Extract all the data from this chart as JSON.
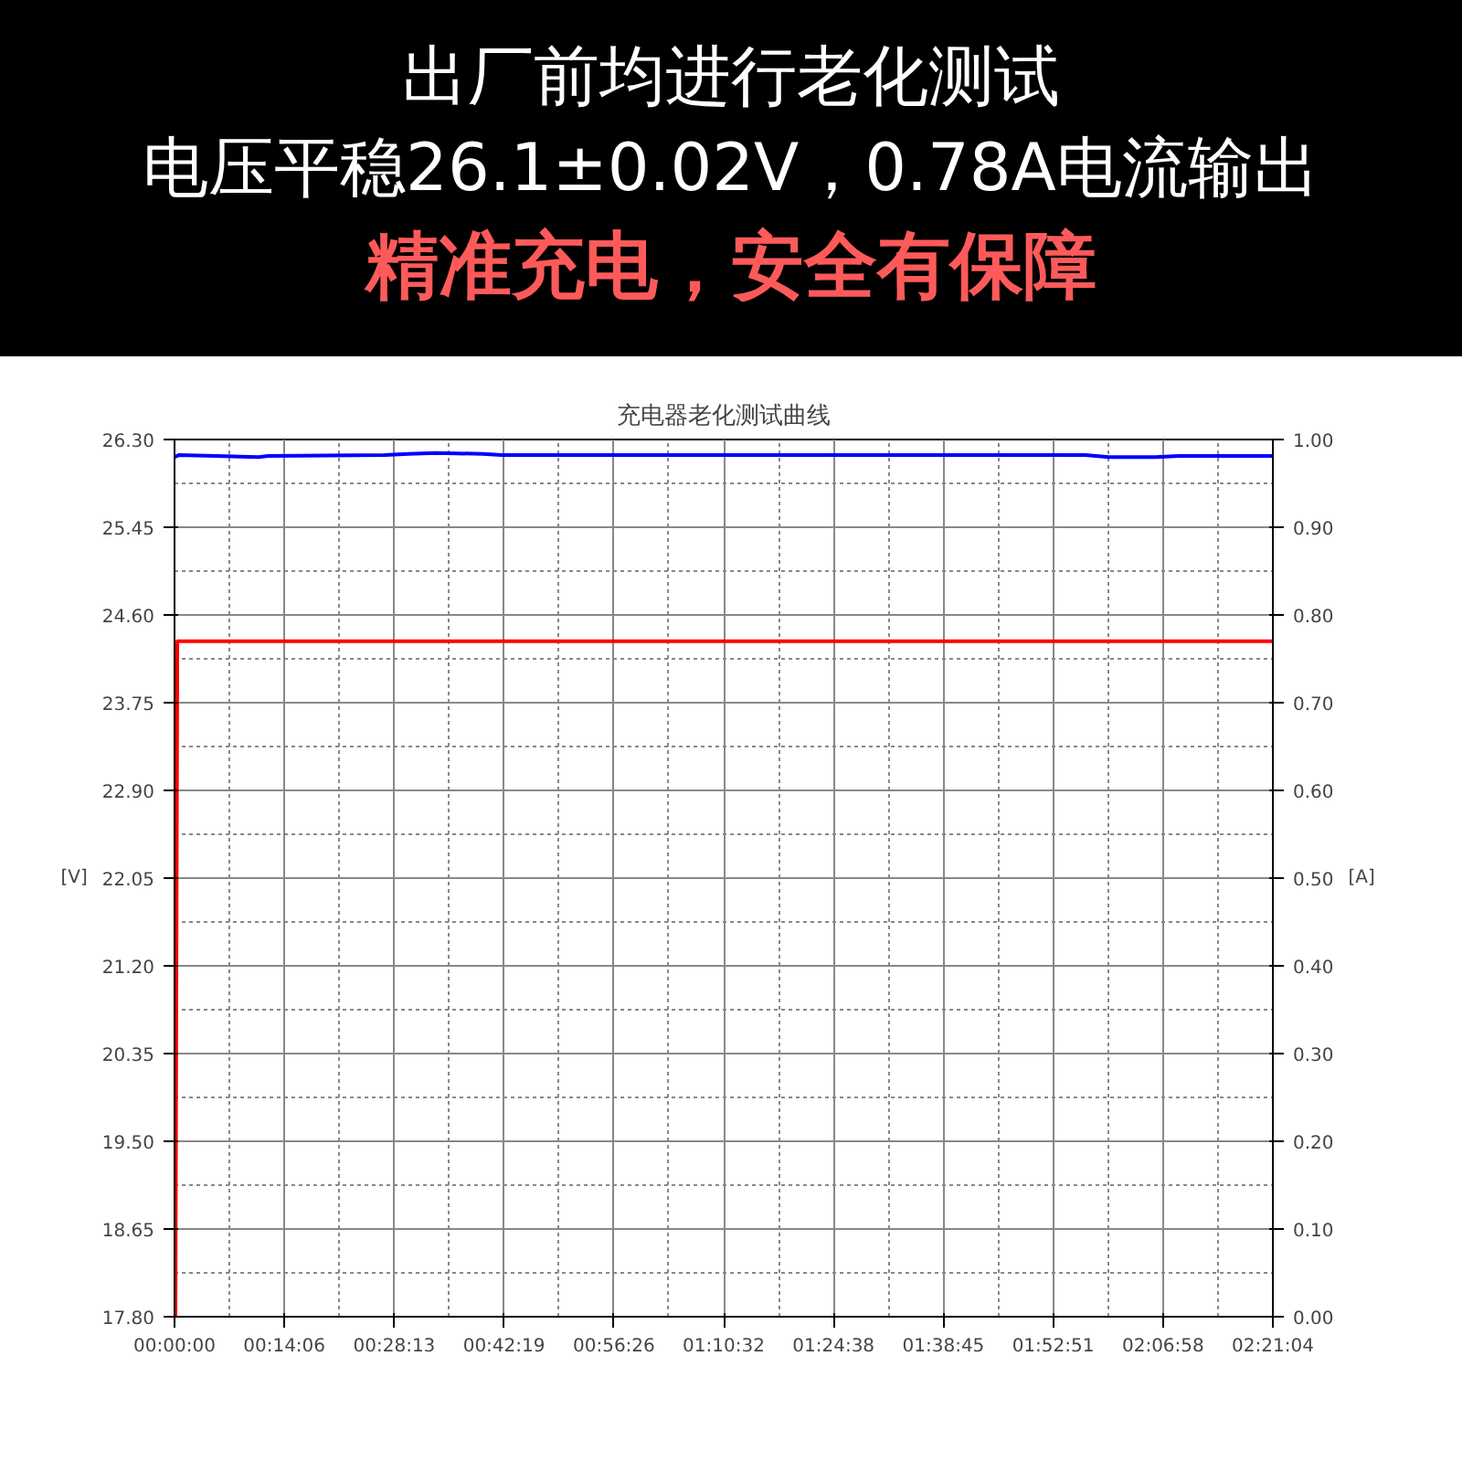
{
  "chart_data": {
    "type": "line",
    "title": "充电器老化测试曲线",
    "annotations": [
      "出厂前均进行老化测试",
      "电压平稳26.1±0.02V，0.78A电流输出",
      "精准充电，安全有保障"
    ],
    "ylabel": "[V]",
    "y2label": "[A]",
    "xlim": [
      0,
      2.3511
    ],
    "ylim": [
      17.8,
      26.3
    ],
    "y2lim": [
      0,
      1.0
    ],
    "xticks": [
      {
        "value": 0,
        "label": "00:00:00"
      },
      {
        "value": 0.235,
        "label": "00:14:06"
      },
      {
        "value": 0.4703,
        "label": "00:28:13"
      },
      {
        "value": 0.7053,
        "label": "00:42:19"
      },
      {
        "value": 0.9406,
        "label": "00:56:26"
      },
      {
        "value": 1.1756,
        "label": "01:10:32"
      },
      {
        "value": 1.4106,
        "label": "01:24:38"
      },
      {
        "value": 1.6458,
        "label": "01:38:45"
      },
      {
        "value": 1.8808,
        "label": "01:52:51"
      },
      {
        "value": 2.1161,
        "label": "02:06:58"
      },
      {
        "value": 2.3511,
        "label": "02:21:04"
      }
    ],
    "yticks": [
      {
        "value": 17.8,
        "label": "17.80"
      },
      {
        "value": 18.65,
        "label": "18.65"
      },
      {
        "value": 19.5,
        "label": "19.50"
      },
      {
        "value": 20.35,
        "label": "20.35"
      },
      {
        "value": 21.2,
        "label": "21.20"
      },
      {
        "value": 22.05,
        "label": "22.05"
      },
      {
        "value": 22.9,
        "label": "22.90"
      },
      {
        "value": 23.75,
        "label": "23.75"
      },
      {
        "value": 24.6,
        "label": "24.60"
      },
      {
        "value": 25.45,
        "label": "25.45"
      },
      {
        "value": 26.3,
        "label": "26.30"
      }
    ],
    "y2ticks": [
      {
        "value": 0,
        "label": "0.00"
      },
      {
        "value": 0.1,
        "label": "0.10"
      },
      {
        "value": 0.2,
        "label": "0.20"
      },
      {
        "value": 0.3,
        "label": "0.30"
      },
      {
        "value": 0.4,
        "label": "0.40"
      },
      {
        "value": 0.5,
        "label": "0.50"
      },
      {
        "value": 0.6,
        "label": "0.60"
      },
      {
        "value": 0.7,
        "label": "0.70"
      },
      {
        "value": 0.8,
        "label": "0.80"
      },
      {
        "value": 0.9,
        "label": "0.90"
      },
      {
        "value": 1.0,
        "label": "1.00"
      }
    ],
    "grid": true,
    "series": [
      {
        "color": "#0000ff",
        "x": [
          0,
          0.01,
          0.18,
          0.2,
          0.45,
          0.5,
          0.56,
          0.66,
          0.7,
          1.2,
          1.95,
          2.0,
          2.1,
          2.15,
          2.3511
        ],
        "values": [
          26.13,
          26.15,
          26.13,
          26.14,
          26.15,
          26.16,
          26.17,
          26.16,
          26.15,
          26.15,
          26.15,
          26.13,
          26.13,
          26.14,
          26.14
        ]
      },
      {
        "color": "#ff0000",
        "axis": "y2",
        "x": [
          0.002,
          0.006,
          0.1,
          1.2,
          2.3511
        ],
        "values": [
          0,
          0.77,
          0.77,
          0.77,
          0.77
        ],
        "line_style": "solid"
      }
    ]
  }
}
